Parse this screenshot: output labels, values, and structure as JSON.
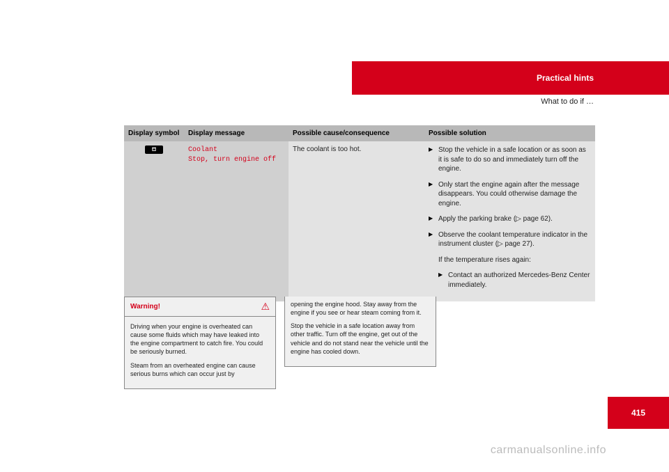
{
  "header": {
    "title": "Practical hints",
    "subtitle": "What to do if …"
  },
  "table": {
    "headers": {
      "symbol": "Display symbol",
      "message": "Display message",
      "cause": "Possible cause/consequence",
      "solution": "Possible solution"
    },
    "row": {
      "symbol_icon": "coolant-temp-icon",
      "symbol_glyph": "⛾",
      "message": "Coolant\nStop, turn engine off",
      "cause": "The coolant is too hot.",
      "solutions": [
        {
          "type": "bullet",
          "text": "Stop the vehicle in a safe location or as soon as it is safe to do so and immediately turn off the engine."
        },
        {
          "type": "bullet",
          "text": "Only start the engine again after the message disappears. You could otherwise damage the engine."
        },
        {
          "type": "bullet",
          "text": "Apply the parking brake (▷ page 62)."
        },
        {
          "type": "bullet",
          "text": "Observe the coolant temperature indicator in the instrument cluster (▷ page 27)."
        },
        {
          "type": "plain",
          "text": "If the temperature rises again:"
        },
        {
          "type": "indent-bullet",
          "text": "Contact an authorized Mercedes-Benz Center immediately."
        }
      ]
    }
  },
  "warning": {
    "title": "Warning!",
    "icon": "⚠",
    "p1": "Driving when your engine is overheated can cause some fluids which may have leaked into the engine compartment to catch fire. You could be seriously burned.",
    "p2": "Steam from an overheated engine can cause serious burns which can occur just by"
  },
  "continue": {
    "p1": "opening the engine hood. Stay away from the engine if you see or hear steam coming from it.",
    "p2": "Stop the vehicle in a safe location away from other traffic. Turn off the engine, get out of the vehicle and do not stand near the vehicle until the engine has cooled down."
  },
  "page_number": "415",
  "watermark": "carmanualsonline.info",
  "colors": {
    "accent": "#d4001a",
    "row_dark": "#d0d0d0",
    "row_light": "#e3e3e3",
    "header_gray": "#b8b8b8"
  }
}
